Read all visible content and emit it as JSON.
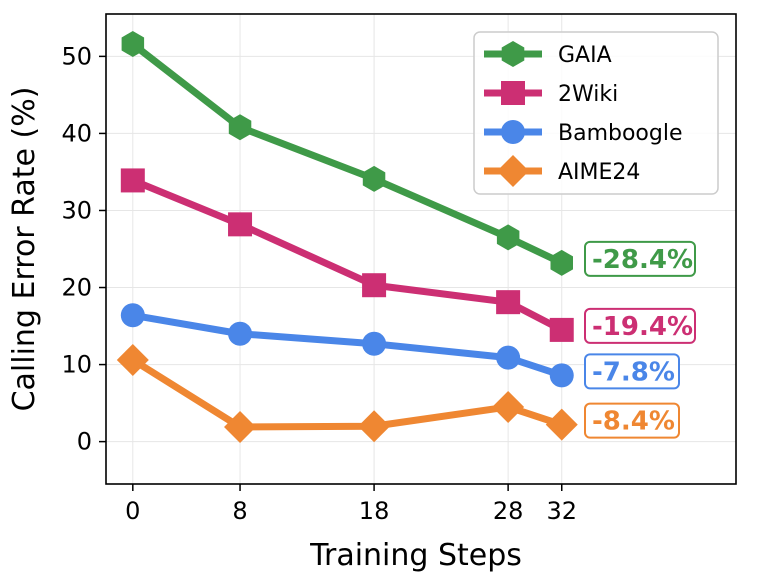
{
  "chart_data": {
    "type": "line",
    "title": "",
    "xlabel": "Training Steps",
    "ylabel": "Calling Error Rate (%)",
    "x": [
      0,
      8,
      18,
      28,
      32
    ],
    "x_tick_labels": [
      "0",
      "8",
      "18",
      "28",
      "32"
    ],
    "xlim": [
      -2,
      45
    ],
    "ylim": [
      -5.5,
      55.5
    ],
    "y_ticks": [
      0,
      10,
      20,
      30,
      40,
      50
    ],
    "grid": true,
    "legend_position": "top-right",
    "series": [
      {
        "name": "GAIA",
        "color": "#3f9a48",
        "marker": "hexagon",
        "values": [
          51.6,
          40.8,
          34.1,
          26.5,
          23.2
        ],
        "annotation": "-28.4%"
      },
      {
        "name": "2Wiki",
        "color": "#cc2f73",
        "marker": "square",
        "values": [
          33.9,
          28.2,
          20.3,
          18.1,
          14.5
        ],
        "annotation": "-19.4%"
      },
      {
        "name": "Bamboogle",
        "color": "#4a86e8",
        "marker": "circle",
        "values": [
          16.4,
          14.0,
          12.7,
          10.9,
          8.6
        ],
        "annotation": "-7.8%"
      },
      {
        "name": "AIME24",
        "color": "#ef8732",
        "marker": "diamond",
        "values": [
          10.6,
          1.9,
          2.0,
          4.5,
          2.2
        ],
        "annotation": "-8.4%"
      }
    ]
  }
}
